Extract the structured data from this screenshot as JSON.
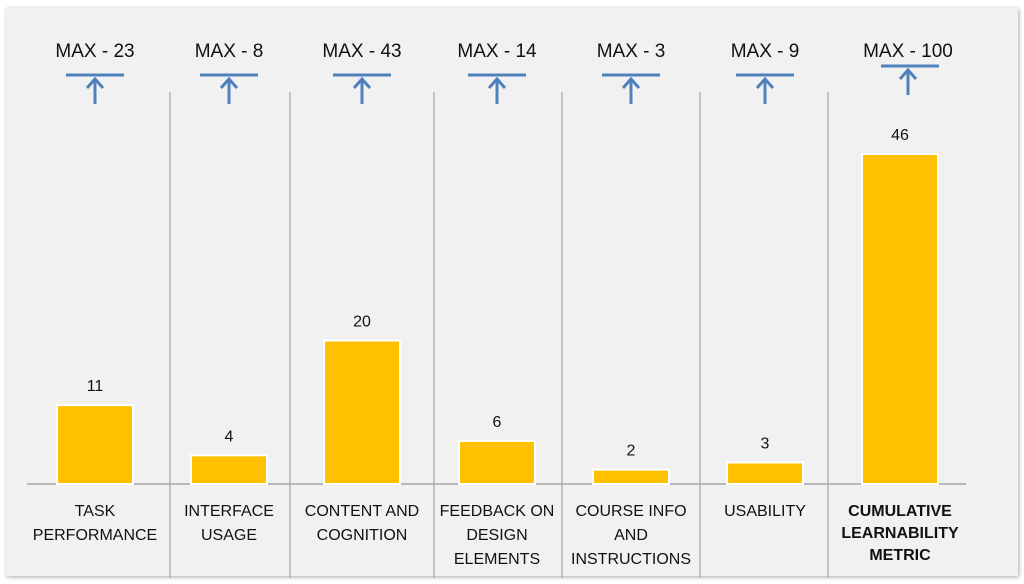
{
  "chart_data": {
    "type": "bar",
    "categories": [
      [
        "TASK",
        "PERFORMANCE"
      ],
      [
        "INTERFACE",
        "USAGE"
      ],
      [
        "CONTENT AND",
        "COGNITION"
      ],
      [
        "FEEDBACK ON",
        "DESIGN",
        "ELEMENTS"
      ],
      [
        "COURSE INFO",
        "AND",
        "INSTRUCTIONS"
      ],
      [
        "USABILITY"
      ],
      [
        "CUMULATIVE",
        "LEARNABILITY",
        "METRIC"
      ]
    ],
    "values": [
      11,
      4,
      20,
      6,
      2,
      3,
      46
    ],
    "max_labels": [
      "MAX - 23",
      "MAX - 8",
      "MAX - 43",
      "MAX - 14",
      "MAX - 3",
      "MAX - 9",
      "MAX - 100"
    ],
    "bold_category_index": 6,
    "ylim": [
      0,
      50
    ],
    "grid": false,
    "legend": "none",
    "bar_color": "#ffc000",
    "marker_color": "#4f81bd",
    "axis_color": "#a6a6a6"
  }
}
